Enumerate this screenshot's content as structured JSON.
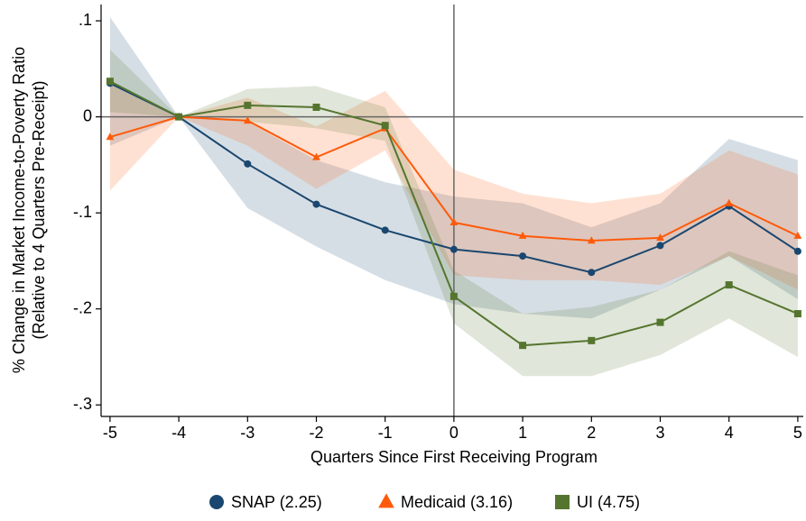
{
  "chart_data": {
    "type": "line",
    "xlabel": "Quarters Since First Receiving Program",
    "ylabel": [
      "% Change in Market Income-to-Poverty Ratio",
      "(Relative to 4 Quarters Pre-Receipt)"
    ],
    "x": [
      -5,
      -4,
      -3,
      -2,
      -1,
      0,
      1,
      2,
      3,
      4,
      5
    ],
    "xlim": [
      -5.13,
      5.08
    ],
    "xticks": [
      -5,
      -4,
      -3,
      -2,
      -1,
      0,
      1,
      2,
      3,
      4,
      5
    ],
    "ylim": [
      -0.312,
      0.117
    ],
    "yticks": [
      {
        "value": 0.1,
        "label": ".1"
      },
      0,
      {
        "value": -0.1,
        "label": "-.1"
      },
      {
        "value": -0.2,
        "label": "-.2"
      },
      {
        "value": -0.3,
        "label": "-.3"
      }
    ],
    "xline": 0,
    "yline": 0,
    "series": [
      {
        "name": "SNAP (2.25)",
        "color": "#1a476f",
        "marker": "circle",
        "values": [
          0.035,
          0,
          -0.049,
          -0.091,
          -0.118,
          -0.138,
          -0.145,
          -0.162,
          -0.134,
          -0.093,
          -0.14
        ],
        "lower": [
          -0.03,
          0,
          -0.095,
          -0.135,
          -0.17,
          -0.195,
          -0.205,
          -0.21,
          -0.18,
          -0.145,
          -0.19
        ],
        "upper": [
          0.104,
          0,
          -0.005,
          -0.045,
          -0.068,
          -0.083,
          -0.09,
          -0.115,
          -0.09,
          -0.023,
          -0.045
        ]
      },
      {
        "name": "Medicaid (3.16)",
        "color": "#ff5a0a",
        "marker": "triangle",
        "values": [
          -0.021,
          0,
          -0.004,
          -0.042,
          -0.012,
          -0.11,
          -0.124,
          -0.129,
          -0.126,
          -0.09,
          -0.124
        ],
        "lower": [
          -0.077,
          0,
          -0.03,
          -0.075,
          -0.035,
          -0.165,
          -0.17,
          -0.17,
          -0.175,
          -0.145,
          -0.18
        ],
        "upper": [
          0.035,
          0,
          0.02,
          -0.01,
          0.027,
          -0.055,
          -0.08,
          -0.09,
          -0.08,
          -0.035,
          -0.06
        ]
      },
      {
        "name": "UI (4.75)",
        "color": "#55752f",
        "marker": "square",
        "values": [
          0.037,
          0,
          0.012,
          0.01,
          -0.009,
          -0.187,
          -0.238,
          -0.233,
          -0.214,
          -0.175,
          -0.205
        ],
        "lower": [
          0.005,
          0,
          -0.005,
          -0.012,
          -0.025,
          -0.215,
          -0.27,
          -0.27,
          -0.248,
          -0.21,
          -0.25
        ],
        "upper": [
          0.07,
          0,
          0.029,
          0.032,
          0.01,
          -0.16,
          -0.205,
          -0.198,
          -0.18,
          -0.14,
          -0.165
        ]
      }
    ]
  }
}
